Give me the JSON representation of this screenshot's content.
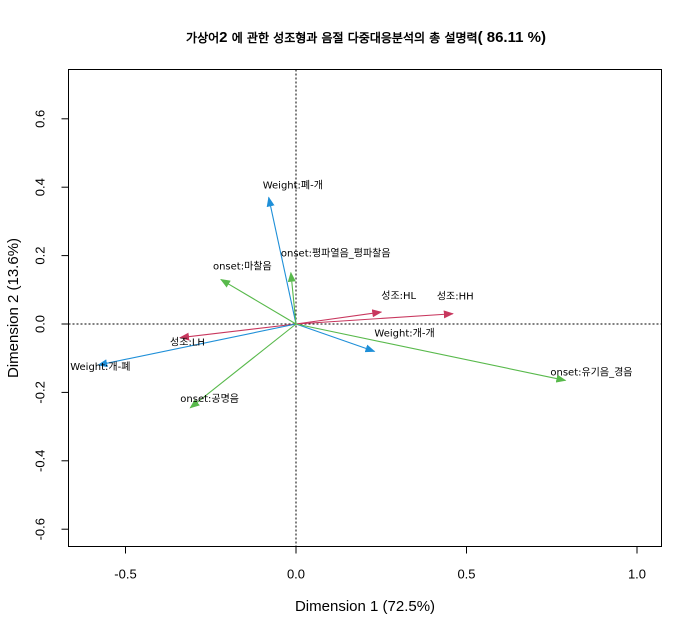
{
  "chart_data": {
    "type": "scatter",
    "title": {
      "part1": "가상어",
      "part2": "2",
      "part3": " 에 관한 성조형과 음절 다중대응분석의 총 설명력",
      "part4": "( 86.11 %)"
    },
    "xlabel": "Dimension 1 (72.5%)",
    "ylabel": "Dimension 2 (13.6%)",
    "xlim": [
      -0.65,
      1.07
    ],
    "ylim": [
      -0.65,
      0.75
    ],
    "xticks": [
      -0.5,
      0.0,
      0.5,
      1.0
    ],
    "xtick_labels": [
      "-0.5",
      "0.0",
      "0.5",
      "1.0"
    ],
    "yticks": [
      -0.6,
      -0.4,
      -0.2,
      0.0,
      0.2,
      0.4,
      0.6
    ],
    "ytick_labels": [
      "-0.6",
      "-0.4",
      "-0.2",
      "0.0",
      "0.2",
      "0.4",
      "0.6"
    ],
    "reference_lines": {
      "x": 0,
      "y": 0,
      "style": "dotted"
    },
    "grid": false,
    "series": [
      {
        "variable": "성조",
        "color": "#c8375e",
        "points": [
          {
            "label": "성조:LH",
            "x": -0.34,
            "y": -0.04
          },
          {
            "label": "성조:HL",
            "x": 0.25,
            "y": 0.035
          },
          {
            "label": "성조:HH",
            "x": 0.46,
            "y": 0.03
          }
        ]
      },
      {
        "variable": "Weight",
        "color": "#1e8fd8",
        "points": [
          {
            "label": "Weight:폐-개",
            "x": -0.08,
            "y": 0.37
          },
          {
            "label": "Weight:개-폐",
            "x": -0.58,
            "y": -0.12
          },
          {
            "label": "Weight:개-개",
            "x": 0.23,
            "y": -0.08
          }
        ]
      },
      {
        "variable": "onset",
        "color": "#58b94b",
        "points": [
          {
            "label": "onset:마찰음",
            "x": -0.22,
            "y": 0.13
          },
          {
            "label": "onset:평파열음_평파찰음",
            "x": -0.015,
            "y": 0.15
          },
          {
            "label": "onset:유기음_경음",
            "x": 0.79,
            "y": -0.165
          },
          {
            "label": "onset:공명음",
            "x": -0.31,
            "y": -0.245
          }
        ]
      }
    ]
  }
}
